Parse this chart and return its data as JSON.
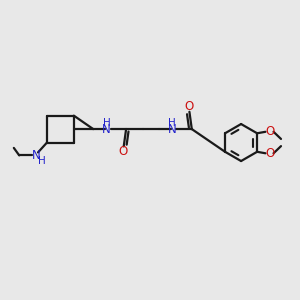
{
  "background_color": "#e8e8e8",
  "bond_color": "#1a1a1a",
  "nitrogen_color": "#2222cc",
  "oxygen_color": "#cc1111",
  "line_width": 1.6,
  "figsize": [
    3.0,
    3.0
  ],
  "dpi": 100,
  "xlim": [
    0,
    10
  ],
  "ylim": [
    0,
    10
  ]
}
